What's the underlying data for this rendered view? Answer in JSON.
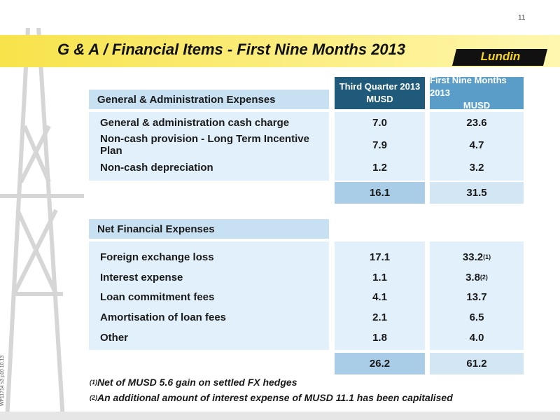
{
  "page_number": "11",
  "title": "G & A / Financial Items - First Nine Months 2013",
  "logo": "Lundin",
  "side_code": "WF11714 s3 p10 10.13",
  "columns": [
    {
      "line1": "Third Quarter 2013",
      "line2": "MUSD"
    },
    {
      "line1": "First Nine Months 2013",
      "line2": "MUSD"
    }
  ],
  "sections": [
    {
      "heading": "General & Administration Expenses",
      "rows": [
        {
          "label": "General & administration cash charge",
          "q3": "7.0",
          "nine": "23.6"
        },
        {
          "label": "Non-cash provision - Long Term Incentive Plan",
          "q3": "7.9",
          "nine": "4.7"
        },
        {
          "label": "Non-cash depreciation",
          "q3": "1.2",
          "nine": "3.2"
        }
      ],
      "total": {
        "q3": "16.1",
        "nine": "31.5"
      }
    },
    {
      "heading": "Net Financial Expenses",
      "rows": [
        {
          "label": "Foreign exchange loss",
          "q3": "17.1",
          "nine": "33.2",
          "nine_note": "(1)"
        },
        {
          "label": "Interest expense",
          "q3": "1.1",
          "nine": "3.8",
          "nine_note": "(2)"
        },
        {
          "label": "Loan commitment fees",
          "q3": "4.1",
          "nine": "13.7"
        },
        {
          "label": "Amortisation of loan fees",
          "q3": "2.1",
          "nine": "6.5"
        },
        {
          "label": "Other",
          "q3": "1.8",
          "nine": "4.0"
        }
      ],
      "total": {
        "q3": "26.2",
        "nine": "61.2"
      }
    }
  ],
  "footnotes": [
    {
      "marker": "(1)",
      "text": "Net of MUSD 5.6 gain on settled FX hedges"
    },
    {
      "marker": "(2)",
      "text": "An additional amount of interest expense of MUSD 11.1 has been capitalised"
    }
  ]
}
